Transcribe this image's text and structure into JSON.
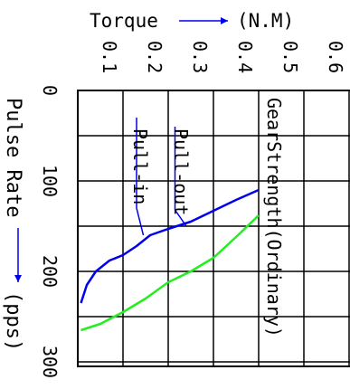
{
  "chart_data": {
    "type": "line",
    "orientation": "rotated-90-clockwise",
    "x_axis": {
      "label": "Torque",
      "unit": "(N.M)",
      "ticks": [
        0.1,
        0.2,
        0.3,
        0.4,
        0.5,
        0.6
      ],
      "tick_labels": [
        "0.1",
        "0.2",
        "0.3",
        "0.4",
        "0.5",
        "0.6"
      ],
      "range": [
        0,
        0.6
      ]
    },
    "y_axis": {
      "label": "Pulse Rate",
      "unit": "(pps)",
      "ticks": [
        0,
        100,
        200,
        300
      ],
      "tick_labels": [
        "0",
        "100",
        "200",
        "300"
      ],
      "range": [
        0,
        300
      ]
    },
    "grid": true,
    "annotation": "GearStrength(Ordinary)",
    "series": [
      {
        "name": "Pull-in",
        "color": "#0000ee",
        "points": [
          [
            0.007,
            235
          ],
          [
            0.02,
            215
          ],
          [
            0.04,
            200
          ],
          [
            0.07,
            188
          ],
          [
            0.1,
            182
          ],
          [
            0.13,
            172
          ],
          [
            0.16,
            160
          ],
          [
            0.2,
            153
          ],
          [
            0.25,
            145
          ],
          [
            0.3,
            133
          ],
          [
            0.35,
            121
          ],
          [
            0.4,
            110
          ]
        ]
      },
      {
        "name": "Pull-out",
        "color": "#22ee22",
        "points": [
          [
            0.007,
            265
          ],
          [
            0.05,
            258
          ],
          [
            0.1,
            245
          ],
          [
            0.15,
            230
          ],
          [
            0.2,
            212
          ],
          [
            0.25,
            200
          ],
          [
            0.3,
            185
          ],
          [
            0.35,
            162
          ],
          [
            0.4,
            138
          ]
        ]
      }
    ]
  }
}
